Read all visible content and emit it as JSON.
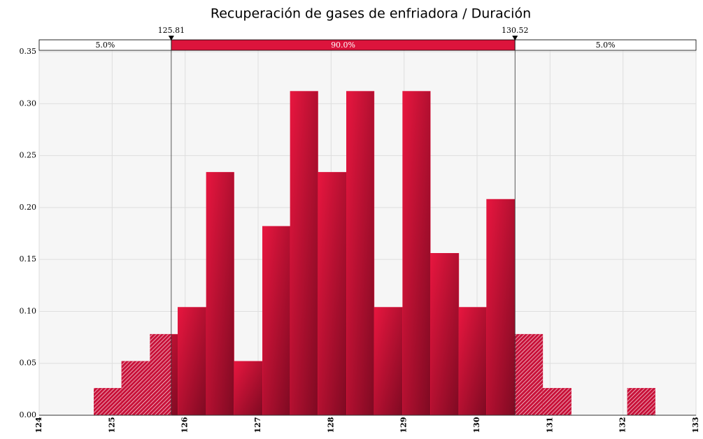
{
  "chart_data": {
    "type": "histogram",
    "title": "Recuperación de gases de enfriadora / Duración",
    "bins": [
      124.75,
      125.13,
      125.52,
      125.9,
      126.29,
      126.67,
      127.06,
      127.44,
      127.82,
      128.21,
      128.59,
      128.98,
      129.36,
      129.75,
      130.13,
      130.52,
      130.9,
      131.29,
      131.67,
      132.06,
      132.44
    ],
    "values": [
      0.026,
      0.052,
      0.078,
      0.104,
      0.234,
      0.052,
      0.182,
      0.312,
      0.234,
      0.312,
      0.104,
      0.312,
      0.156,
      0.104,
      0.208,
      0.078,
      0.026,
      0,
      0,
      0.026
    ],
    "color": "#dc143c",
    "xlim": [
      124,
      133
    ],
    "xticks": [
      124,
      125,
      126,
      127,
      128,
      129,
      130,
      131,
      132,
      133
    ],
    "ylim": [
      0,
      0.3615
    ],
    "yticks": [
      {
        "value": 0,
        "label": "0.00"
      },
      0.05,
      {
        "value": 0.1,
        "label": "0.10"
      },
      0.15,
      {
        "value": 0.2,
        "label": "0.20"
      },
      0.25,
      {
        "value": 0.3,
        "label": "0.30"
      },
      0.35
    ],
    "grid": true,
    "delimiters": [
      125.81,
      130.52
    ],
    "band_percents": [
      {
        "value": 5,
        "label": "5.0%"
      },
      {
        "value": 90,
        "label": "90.0%"
      },
      {
        "value": 5,
        "label": "5.0%"
      }
    ]
  }
}
